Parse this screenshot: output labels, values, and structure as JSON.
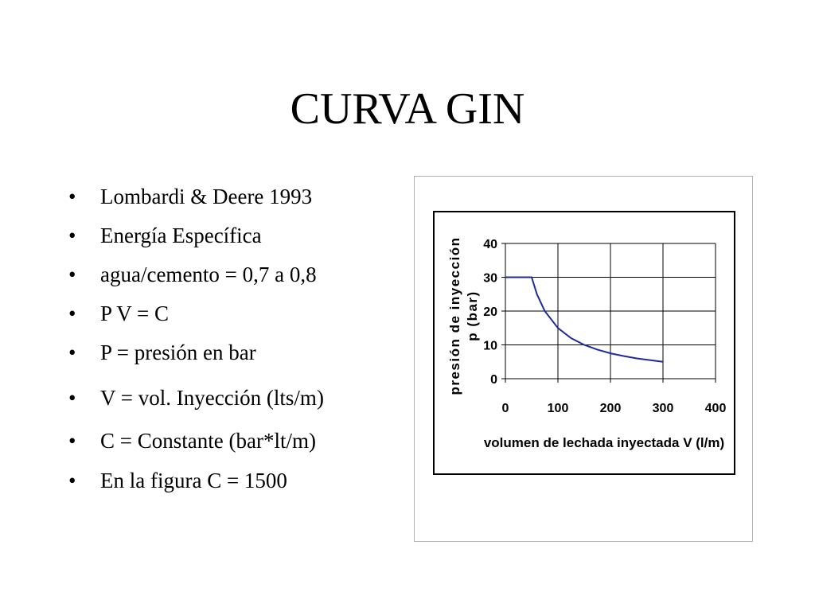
{
  "slide": {
    "title": "CURVA GIN",
    "bullet_symbol": "•",
    "bullets": [
      "Lombardi & Deere  1993",
      "Energía Específica",
      "agua/cemento = 0,7 a 0,8",
      "P V = C",
      "P = presión en bar",
      "V = vol. Inyección (lts/m)",
      "C = Constante (bar*lt/m)",
      "En la figura C = 1500"
    ]
  },
  "chart_data": {
    "type": "line",
    "title": "",
    "xlabel": "volumen de lechada inyectada  V (l/m)",
    "ylabel_lines": [
      "presión de inyección",
      "p (bar)"
    ],
    "xlim": [
      0,
      400
    ],
    "ylim": [
      0,
      40
    ],
    "xticks": [
      0,
      100,
      200,
      300,
      400
    ],
    "yticks": [
      0,
      10,
      20,
      30,
      40
    ],
    "grid": true,
    "legend": "none",
    "series_color": "#1f2aa0",
    "series": [
      {
        "x": [
          0,
          50,
          60,
          75,
          100,
          125,
          150,
          175,
          200,
          225,
          250,
          275,
          300
        ],
        "y": [
          30,
          30,
          25,
          20,
          15,
          12,
          10,
          8.6,
          7.5,
          6.7,
          6,
          5.5,
          5
        ]
      }
    ]
  }
}
